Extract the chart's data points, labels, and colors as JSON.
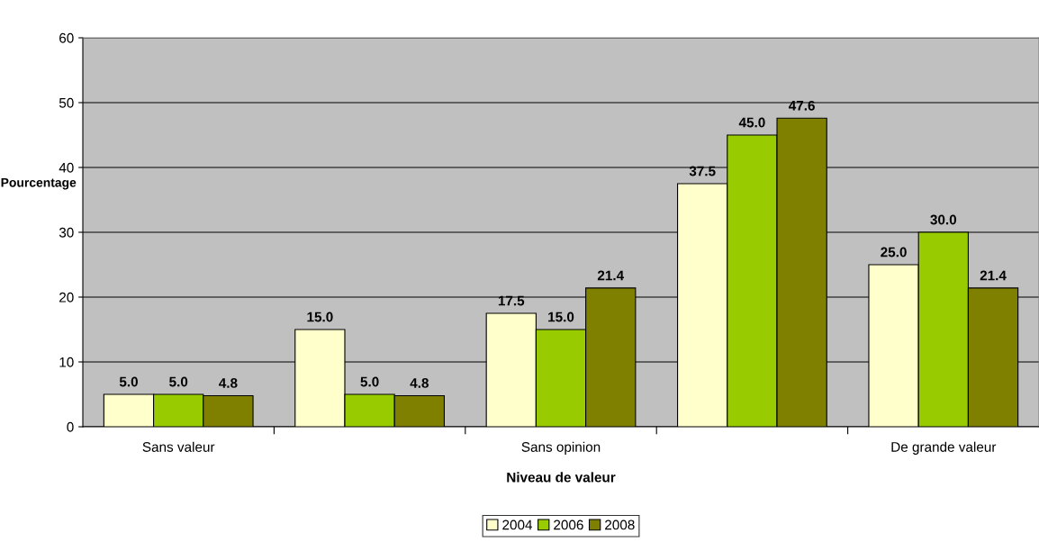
{
  "chart_data": {
    "type": "bar",
    "xlabel": "Niveau de valeur",
    "ylabel": "Pourcentage",
    "categories": [
      "Sans valeur",
      null,
      "Sans opinion",
      null,
      "De grande valeur"
    ],
    "series": [
      {
        "name": "2004",
        "color": "#ffffcc",
        "values": [
          5.0,
          15.0,
          17.5,
          37.5,
          25.0
        ],
        "value_labels": [
          "5.0",
          "15.0",
          "17.5",
          "37.5",
          "25.0"
        ]
      },
      {
        "name": "2006",
        "color": "#99cc00",
        "values": [
          5.0,
          5.0,
          15.0,
          45.0,
          30.0
        ],
        "value_labels": [
          "5.0",
          "5.0",
          "15.0",
          "45.0",
          "30.0"
        ]
      },
      {
        "name": "2008",
        "color": "#808000",
        "values": [
          4.8,
          4.8,
          21.4,
          47.6,
          21.4
        ],
        "value_labels": [
          "4.8",
          "4.8",
          "21.4",
          "47.6",
          "21.4"
        ]
      }
    ],
    "ylim": [
      0,
      60
    ],
    "yticks": [
      0,
      10,
      20,
      30,
      40,
      50,
      60
    ],
    "grid": "y",
    "legend": "bottom"
  }
}
